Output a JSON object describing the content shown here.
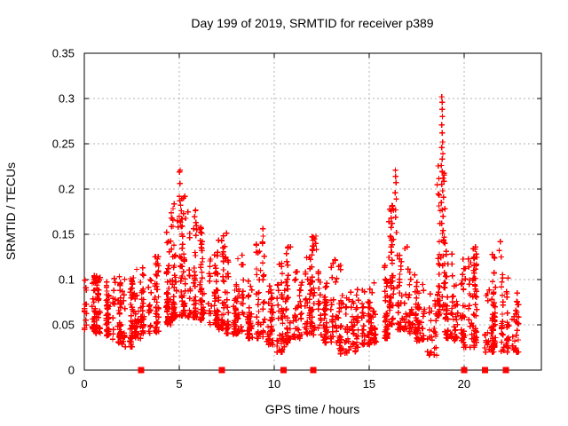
{
  "figure": {
    "background": "#ffffff",
    "border_color": "#000000",
    "text_color": "#000000"
  },
  "chart_data": {
    "type": "scatter",
    "title": "Day 199 of 2019, SRMTID for receiver p389",
    "xlabel": "GPS time / hours",
    "ylabel": "SRMTID / TECUs",
    "xlim": [
      0,
      24.07
    ],
    "ylim": [
      0,
      0.35
    ],
    "xticks": [
      0,
      5,
      10,
      15,
      20
    ],
    "xticklabels": [
      "0",
      "5",
      "10",
      "15",
      "20"
    ],
    "yticks": [
      0,
      0.05,
      0.1,
      0.15,
      0.2,
      0.25,
      0.3,
      0.35
    ],
    "yticklabels": [
      "0",
      "0.05",
      "0.1",
      "0.15",
      "0.2",
      "0.25",
      "0.3",
      "0.35"
    ],
    "grid": true,
    "grid_color": "#b0b0b0",
    "legend": "none",
    "marker": "plus",
    "marker_color": "#ff0000",
    "zero_marker": "filled-square",
    "zero_markers_x": [
      3.0,
      7.25,
      10.5,
      12.05,
      20.0,
      21.1,
      22.2
    ],
    "series_name": "SRMTID",
    "density_bins": [
      [
        0.0,
        0.5,
        42,
        0.045,
        0.105
      ],
      [
        0.5,
        1.0,
        45,
        0.04,
        0.108
      ],
      [
        1.0,
        1.5,
        45,
        0.038,
        0.1
      ],
      [
        1.5,
        2.0,
        45,
        0.03,
        0.105
      ],
      [
        2.0,
        2.5,
        45,
        0.025,
        0.105
      ],
      [
        2.5,
        3.0,
        45,
        0.035,
        0.112
      ],
      [
        3.0,
        3.5,
        45,
        0.04,
        0.115
      ],
      [
        3.5,
        4.0,
        45,
        0.042,
        0.128
      ],
      [
        4.0,
        4.5,
        50,
        0.05,
        0.155
      ],
      [
        4.5,
        5.0,
        55,
        0.055,
        0.185
      ],
      [
        5.0,
        5.5,
        55,
        0.06,
        0.195
      ],
      [
        5.5,
        6.0,
        50,
        0.058,
        0.178
      ],
      [
        6.0,
        6.5,
        50,
        0.055,
        0.158
      ],
      [
        6.5,
        7.0,
        45,
        0.05,
        0.13
      ],
      [
        7.0,
        7.5,
        45,
        0.045,
        0.152
      ],
      [
        7.5,
        8.0,
        42,
        0.04,
        0.128
      ],
      [
        8.0,
        8.5,
        42,
        0.04,
        0.125
      ],
      [
        8.5,
        9.0,
        40,
        0.035,
        0.11
      ],
      [
        9.0,
        9.5,
        42,
        0.035,
        0.152
      ],
      [
        9.5,
        10.0,
        40,
        0.028,
        0.1
      ],
      [
        10.0,
        10.5,
        40,
        0.02,
        0.118
      ],
      [
        10.5,
        11.0,
        40,
        0.03,
        0.137
      ],
      [
        11.0,
        11.5,
        40,
        0.035,
        0.112
      ],
      [
        11.5,
        12.0,
        40,
        0.04,
        0.13
      ],
      [
        12.0,
        12.5,
        42,
        0.035,
        0.148
      ],
      [
        12.5,
        13.0,
        40,
        0.03,
        0.1
      ],
      [
        13.0,
        13.5,
        40,
        0.03,
        0.122
      ],
      [
        13.5,
        14.0,
        40,
        0.018,
        0.085
      ],
      [
        14.0,
        14.5,
        40,
        0.02,
        0.09
      ],
      [
        14.5,
        15.0,
        40,
        0.028,
        0.09
      ],
      [
        15.0,
        15.5,
        40,
        0.03,
        0.098
      ],
      [
        15.5,
        16.0,
        42,
        0.035,
        0.12
      ],
      [
        16.0,
        16.5,
        50,
        0.05,
        0.185
      ],
      [
        16.5,
        17.0,
        45,
        0.045,
        0.14
      ],
      [
        17.0,
        17.5,
        42,
        0.04,
        0.12
      ],
      [
        17.5,
        18.0,
        36,
        0.032,
        0.1
      ],
      [
        18.0,
        18.5,
        30,
        0.016,
        0.09
      ],
      [
        18.5,
        19.0,
        55,
        0.06,
        0.23
      ],
      [
        19.0,
        19.5,
        42,
        0.035,
        0.13
      ],
      [
        19.5,
        20.0,
        40,
        0.03,
        0.1
      ],
      [
        20.0,
        20.5,
        40,
        0.025,
        0.125
      ],
      [
        20.5,
        21.0,
        40,
        0.03,
        0.135
      ],
      [
        21.0,
        21.5,
        36,
        0.02,
        0.1
      ],
      [
        21.5,
        22.0,
        40,
        0.025,
        0.13
      ],
      [
        22.0,
        22.5,
        40,
        0.02,
        0.115
      ],
      [
        22.5,
        23.05,
        32,
        0.02,
        0.09
      ]
    ],
    "outlier_points": [
      [
        4.95,
        0.158
      ],
      [
        5.02,
        0.219
      ],
      [
        5.05,
        0.221
      ],
      [
        5.04,
        0.206
      ],
      [
        5.0,
        0.192
      ],
      [
        5.03,
        0.187
      ],
      [
        5.07,
        0.182
      ],
      [
        5.1,
        0.176
      ],
      [
        5.0,
        0.17
      ],
      [
        4.9,
        0.165
      ],
      [
        5.85,
        0.176
      ],
      [
        5.88,
        0.163
      ],
      [
        5.92,
        0.155
      ],
      [
        7.3,
        0.135
      ],
      [
        7.28,
        0.128
      ],
      [
        8.3,
        0.127
      ],
      [
        9.4,
        0.156
      ],
      [
        9.42,
        0.148
      ],
      [
        9.38,
        0.14
      ],
      [
        10.85,
        0.136
      ],
      [
        10.4,
        0.118
      ],
      [
        12.2,
        0.148
      ],
      [
        12.18,
        0.14
      ],
      [
        12.22,
        0.133
      ],
      [
        13.2,
        0.122
      ],
      [
        16.38,
        0.221
      ],
      [
        16.4,
        0.214
      ],
      [
        16.41,
        0.207
      ],
      [
        16.37,
        0.196
      ],
      [
        16.43,
        0.189
      ],
      [
        16.4,
        0.177
      ],
      [
        16.39,
        0.169
      ],
      [
        16.44,
        0.152
      ],
      [
        17.0,
        0.136
      ],
      [
        18.83,
        0.302
      ],
      [
        18.85,
        0.296
      ],
      [
        18.84,
        0.288
      ],
      [
        18.86,
        0.28
      ],
      [
        18.82,
        0.271
      ],
      [
        18.85,
        0.262
      ],
      [
        18.87,
        0.252
      ],
      [
        18.83,
        0.246
      ],
      [
        18.88,
        0.239
      ],
      [
        18.84,
        0.233
      ],
      [
        18.8,
        0.226
      ],
      [
        18.86,
        0.219
      ],
      [
        18.9,
        0.212
      ],
      [
        18.82,
        0.205
      ],
      [
        18.87,
        0.198
      ],
      [
        18.92,
        0.191
      ],
      [
        18.8,
        0.185
      ],
      [
        18.85,
        0.177
      ],
      [
        18.89,
        0.17
      ],
      [
        18.83,
        0.162
      ],
      [
        18.9,
        0.154
      ],
      [
        18.95,
        0.147
      ],
      [
        19.0,
        0.14
      ],
      [
        19.05,
        0.131
      ],
      [
        18.78,
        0.124
      ],
      [
        20.6,
        0.136
      ],
      [
        20.65,
        0.128
      ],
      [
        21.9,
        0.142
      ],
      [
        21.85,
        0.132
      ],
      [
        21.95,
        0.125
      ]
    ],
    "seed": 7
  }
}
